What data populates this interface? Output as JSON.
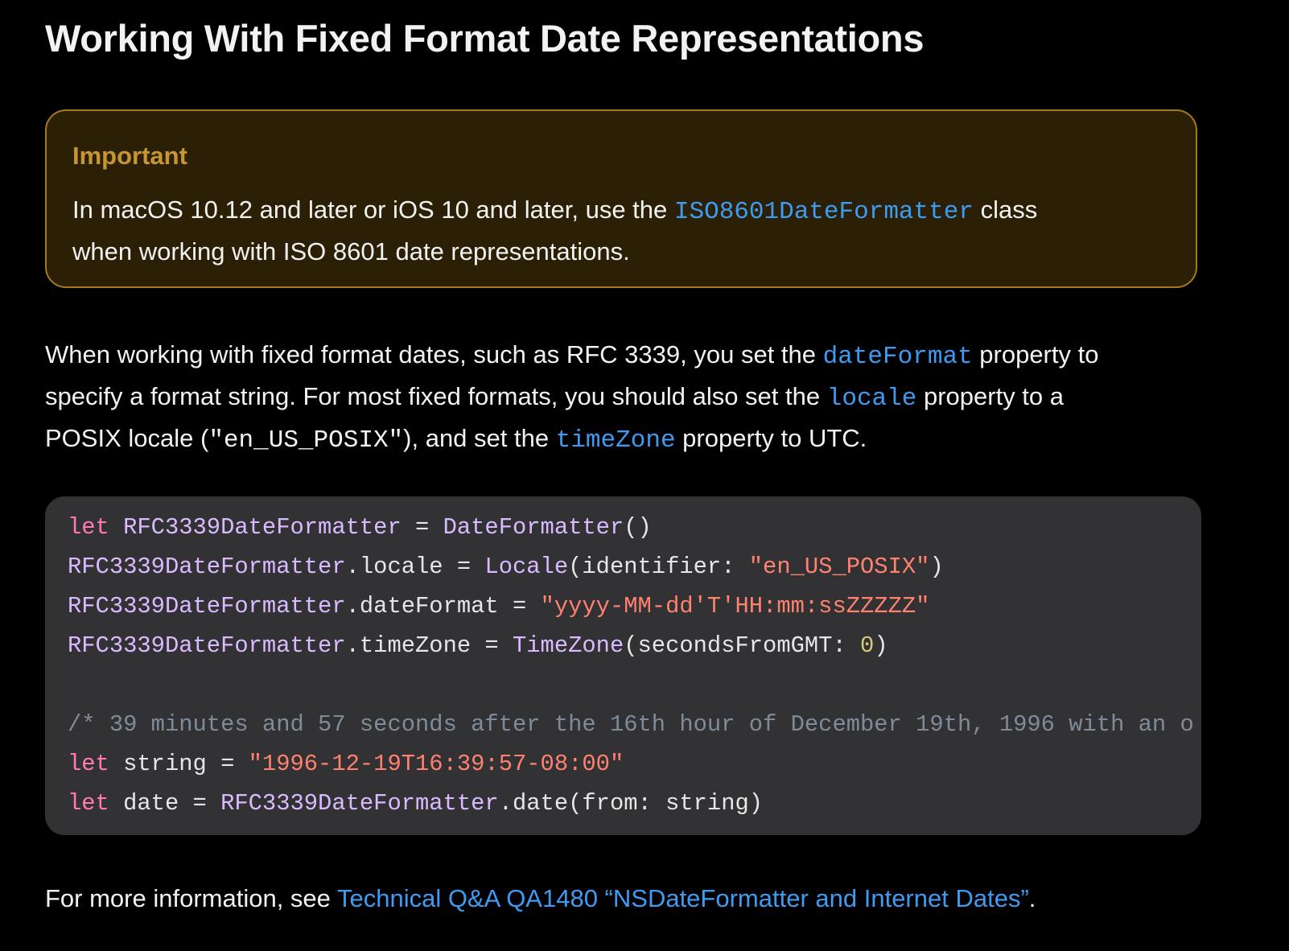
{
  "heading": "Working With Fixed Format Date Representations",
  "aside": {
    "title": "Important",
    "body": [
      "In macOS 10.12 and later or iOS 10 and later, use the ",
      "ISO8601DateFormatter",
      " class",
      "when working with ISO 8601 date representations."
    ]
  },
  "paragraph": [
    "When working with fixed format dates, such as RFC 3339, you set the ",
    "dateFormat",
    " property to",
    "specify a format string. For most fixed formats, you should also set the ",
    "locale",
    " property to a",
    "POSIX locale (",
    "\"en_US_POSIX\"",
    "), and set the ",
    "timeZone",
    " property to UTC."
  ],
  "code": [
    [
      "let",
      " RFC3339DateFormatter",
      " = ",
      "DateFormatter",
      "()"
    ],
    [
      "RFC3339DateFormatter",
      ".locale = ",
      "Locale",
      "(identifier: ",
      "\"en_US_POSIX\"",
      ")"
    ],
    [
      "RFC3339DateFormatter",
      ".dateFormat = ",
      "\"yyyy-MM-dd'T'HH:mm:ssZZZZZ\""
    ],
    [
      "RFC3339DateFormatter",
      ".timeZone = ",
      "TimeZone",
      "(secondsFromGMT: ",
      "0",
      ")"
    ],
    [
      "/* 39 minutes and 57 seconds after the 16th hour of December 19th, 1996 with an o"
    ],
    [
      "let",
      " string = ",
      "\"1996-12-19T16:39:57-08:00\""
    ],
    [
      "let",
      " date = ",
      "RFC3339DateFormatter",
      ".date(from: string)"
    ]
  ],
  "footer": [
    "For more information, see ",
    "Technical Q&A QA1480 “NSDateFormatter and Internet Dates”",
    "."
  ]
}
